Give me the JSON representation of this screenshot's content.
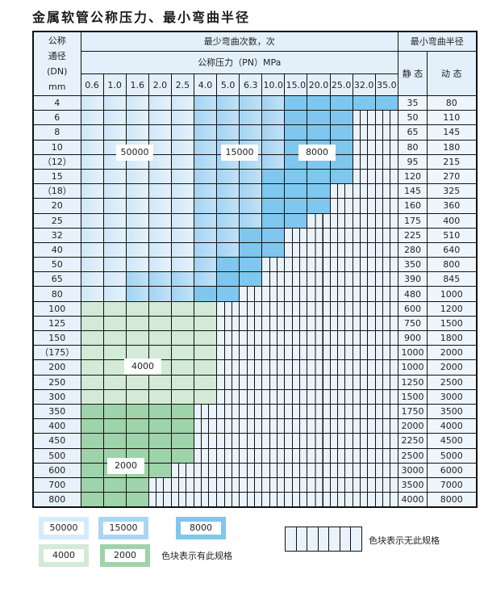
{
  "title": "金属软管公称压力、最小弯曲半径",
  "header": {
    "dn_label": [
      "公称",
      "通径",
      "(DN)",
      "mm"
    ],
    "bend_count": "最少弯曲次数，次",
    "pressure": "公称压力（PN）MPa",
    "pressures": [
      "0.6",
      "1.0",
      "1.6",
      "2.0",
      "2.5",
      "4.0",
      "5.0",
      "6.3",
      "10.0",
      "15.0",
      "20.0",
      "25.0",
      "32.0",
      "35.0"
    ],
    "radius": "最小弯曲半径",
    "static": "静 态",
    "dynamic": "动 态"
  },
  "tier_legend": {
    "a": "50000",
    "b": "15000",
    "c": "8000",
    "d": "4000",
    "e": "2000",
    "-": "none"
  },
  "colors": {
    "a": "#d6ebf9",
    "b": "#a9d6f3",
    "c": "#7fc7ee",
    "d": "#d3ead6",
    "e": "#9fd3a9",
    "empty": "#eaf3fb"
  },
  "rows": [
    {
      "dn": "4",
      "cells": "aaaaabbbbccccc",
      "static": "35",
      "dynamic": "80"
    },
    {
      "dn": "6",
      "cells": "aaaaabbbbccc--",
      "static": "50",
      "dynamic": "110"
    },
    {
      "dn": "8",
      "cells": "aaaaabbbbccc--",
      "static": "65",
      "dynamic": "145"
    },
    {
      "dn": "10",
      "cells": "aaaaabbbbccc--",
      "static": "80",
      "dynamic": "180"
    },
    {
      "dn": "（12）",
      "cells": "aaaaabbbbccc--",
      "static": "95",
      "dynamic": "215"
    },
    {
      "dn": "15",
      "cells": "aaaaabbbcccc--",
      "static": "120",
      "dynamic": "270"
    },
    {
      "dn": "（18）",
      "cells": "aaaaabbbccc---",
      "static": "145",
      "dynamic": "325"
    },
    {
      "dn": "20",
      "cells": "aaaaabbbccc---",
      "static": "160",
      "dynamic": "360"
    },
    {
      "dn": "25",
      "cells": "aaaaabbbcc----",
      "static": "175",
      "dynamic": "400"
    },
    {
      "dn": "32",
      "cells": "aaaaabbcc-----",
      "static": "225",
      "dynamic": "510"
    },
    {
      "dn": "40",
      "cells": "aaaaabbcc-----",
      "static": "280",
      "dynamic": "640"
    },
    {
      "dn": "50",
      "cells": "aaaaabcc------",
      "static": "350",
      "dynamic": "800"
    },
    {
      "dn": "65",
      "cells": "aabbbbcc------",
      "static": "390",
      "dynamic": "845"
    },
    {
      "dn": "80",
      "cells": "aabbbcc-------",
      "static": "480",
      "dynamic": "1000"
    },
    {
      "dn": "100",
      "cells": "dddddd--------",
      "static": "600",
      "dynamic": "1200"
    },
    {
      "dn": "125",
      "cells": "dddddd--------",
      "static": "750",
      "dynamic": "1500"
    },
    {
      "dn": "150",
      "cells": "dddddd--------",
      "static": "900",
      "dynamic": "1800"
    },
    {
      "dn": "（175）",
      "cells": "dddddd--------",
      "static": "1000",
      "dynamic": "2000"
    },
    {
      "dn": "200",
      "cells": "dddddd--------",
      "static": "1000",
      "dynamic": "2000"
    },
    {
      "dn": "250",
      "cells": "dddddd--------",
      "static": "1250",
      "dynamic": "2500"
    },
    {
      "dn": "300",
      "cells": "dddddd--------",
      "static": "1500",
      "dynamic": "3000"
    },
    {
      "dn": "350",
      "cells": "eeeee---------",
      "static": "1750",
      "dynamic": "3500"
    },
    {
      "dn": "400",
      "cells": "eeeee---------",
      "static": "2000",
      "dynamic": "4000"
    },
    {
      "dn": "450",
      "cells": "eeeee---------",
      "static": "2250",
      "dynamic": "4500"
    },
    {
      "dn": "500",
      "cells": "eeeee---------",
      "static": "2500",
      "dynamic": "5000"
    },
    {
      "dn": "600",
      "cells": "eeee----------",
      "static": "3000",
      "dynamic": "6000"
    },
    {
      "dn": "700",
      "cells": "eee-----------",
      "static": "3500",
      "dynamic": "7000"
    },
    {
      "dn": "800",
      "cells": "eee-----------",
      "static": "4000",
      "dynamic": "8000"
    }
  ],
  "legend": {
    "has_spec": "色块表示有此规格",
    "no_spec": "色块表示无此规格"
  }
}
